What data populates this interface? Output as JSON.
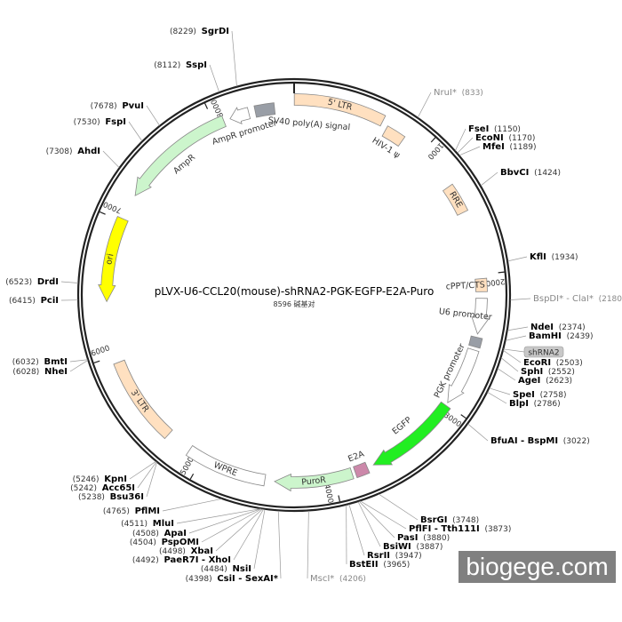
{
  "plasmid": {
    "name": "pLVX-U6-CCL20(mouse)-shRNA2-PGK-EGFP-E2A-Puro",
    "length_label": "8596 碱基对",
    "length_bp": 8596
  },
  "ticks": [
    1000,
    2000,
    3000,
    4000,
    5000,
    6000,
    7000,
    8000
  ],
  "features": [
    {
      "name": "5' LTR",
      "start": 1,
      "end": 645,
      "color": "#ffe0c0",
      "shape": "box",
      "lane": "outer"
    },
    {
      "name": "HIV-1 ψ",
      "start": 692,
      "end": 836,
      "color": "#ffe0c0",
      "shape": "box"
    },
    {
      "name": "RRE",
      "start": 1313,
      "end": 1528,
      "color": "#ffe0c0",
      "shape": "box"
    },
    {
      "name": "cPPT/CTS",
      "start": 2030,
      "end": 2125,
      "color": "#ffe0c0",
      "shape": "box"
    },
    {
      "name": "U6 promoter",
      "start": 2173,
      "end": 2436,
      "color": "#ffffff",
      "shape": "arrow-cw"
    },
    {
      "name": "shRNA2",
      "start": 2460,
      "end": 2531,
      "color": "#999ea6",
      "shape": "box"
    },
    {
      "name": "PGK promoter",
      "start": 2555,
      "end": 2985,
      "color": "#ffffff",
      "shape": "arrow-cw"
    },
    {
      "name": "EGFP",
      "start": 3009,
      "end": 3701,
      "color": "#22ee22",
      "shape": "arrow-cw"
    },
    {
      "name": "E2A",
      "start": 3749,
      "end": 3844,
      "color": "#cc88aa",
      "shape": "box"
    },
    {
      "name": "PuroR",
      "start": 3868,
      "end": 4441,
      "color": "#ccf5cc",
      "shape": "arrow-cw"
    },
    {
      "name": "WPRE",
      "start": 4513,
      "end": 5110,
      "color": "#ffffff",
      "shape": "box"
    },
    {
      "name": "3' LTR",
      "start": 5301,
      "end": 5946,
      "color": "#ffe0c0",
      "shape": "box"
    },
    {
      "name": "ori",
      "start": 6399,
      "end": 7020,
      "color": "#ffff00",
      "shape": "arrow-ccw"
    },
    {
      "name": "AmpR",
      "start": 7211,
      "end": 8071,
      "color": "#ccf5cc",
      "shape": "arrow-ccw"
    },
    {
      "name": "AmpR promoter",
      "start": 8119,
      "end": 8262,
      "color": "#ffffff",
      "shape": "arrow-ccw"
    },
    {
      "name": "SV40 poly(A) signal",
      "start": 8310,
      "end": 8453,
      "color": "#999ea6",
      "shape": "box"
    }
  ],
  "enzymes": [
    {
      "name": "SgrDI",
      "pos": 8229
    },
    {
      "name": "SspI",
      "pos": 8112
    },
    {
      "name": "PvuI",
      "pos": 7678
    },
    {
      "name": "FspI",
      "pos": 7530
    },
    {
      "name": "AhdI",
      "pos": 7308
    },
    {
      "name": "DrdI",
      "pos": 6523
    },
    {
      "name": "PciI",
      "pos": 6415
    },
    {
      "name": "BmtI",
      "pos": 6032
    },
    {
      "name": "NheI",
      "pos": 6028
    },
    {
      "name": "KpnI",
      "pos": 5246
    },
    {
      "name": "Acc65I",
      "pos": 5242
    },
    {
      "name": "Bsu36I",
      "pos": 5238
    },
    {
      "name": "PflMI",
      "pos": 4765
    },
    {
      "name": "MluI",
      "pos": 4511
    },
    {
      "name": "ApaI",
      "pos": 4508
    },
    {
      "name": "PspOMI",
      "pos": 4504
    },
    {
      "name": "XbaI",
      "pos": 4498
    },
    {
      "name": "PaeR7I - XhoI",
      "pos": 4492
    },
    {
      "name": "NsiI",
      "pos": 4484
    },
    {
      "name": "CsiI - SexAI*",
      "pos": 4398
    },
    {
      "name": "MscI*",
      "pos": 4206,
      "nonunique": true
    },
    {
      "name": "NruI*",
      "pos": 833,
      "nonunique": true
    },
    {
      "name": "FseI",
      "pos": 1150
    },
    {
      "name": "EcoNI",
      "pos": 1170
    },
    {
      "name": "MfeI",
      "pos": 1189
    },
    {
      "name": "BbvCI",
      "pos": 1424
    },
    {
      "name": "KflI",
      "pos": 1934
    },
    {
      "name": "BspDI* - ClaI*",
      "pos": 2180,
      "nonunique": true
    },
    {
      "name": "NdeI",
      "pos": 2374
    },
    {
      "name": "BamHI",
      "pos": 2439
    },
    {
      "name": "EcoRI",
      "pos": 2503
    },
    {
      "name": "SphI",
      "pos": 2552
    },
    {
      "name": "AgeI",
      "pos": 2623
    },
    {
      "name": "SpeI",
      "pos": 2758
    },
    {
      "name": "BlpI",
      "pos": 2786
    },
    {
      "name": "BfuAI - BspMI",
      "pos": 3022
    },
    {
      "name": "BsrGI",
      "pos": 3748
    },
    {
      "name": "PflFI - Tth111I",
      "pos": 3873
    },
    {
      "name": "PasI",
      "pos": 3880
    },
    {
      "name": "BsiWI",
      "pos": 3887
    },
    {
      "name": "RsrII",
      "pos": 3947
    },
    {
      "name": "BstEII",
      "pos": 3965
    }
  ],
  "shrna_badge": "shRNA2",
  "watermark": "biogege.com"
}
